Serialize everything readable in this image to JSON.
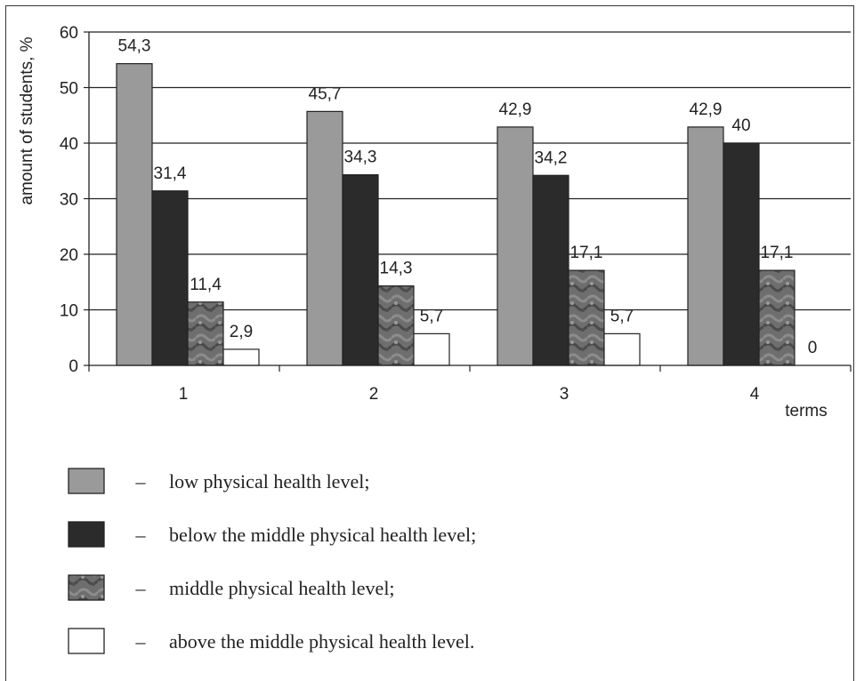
{
  "chart_data": {
    "type": "bar",
    "ylabel": "amount of students, %",
    "xlabel": "terms",
    "ylim": [
      0,
      60
    ],
    "yticks": [
      0,
      10,
      20,
      30,
      40,
      50,
      60
    ],
    "grid": true,
    "categories": [
      "1",
      "2",
      "3",
      "4"
    ],
    "value_labels": [
      [
        "54,3",
        "45,7",
        "42,9",
        "42,9"
      ],
      [
        "31,4",
        "34,3",
        "34,2",
        "40"
      ],
      [
        "11,4",
        "14,3",
        "17,1",
        "17,1"
      ],
      [
        "2,9",
        "5,7",
        "5,7",
        "0"
      ]
    ],
    "series": [
      {
        "name": "low physical health level;",
        "values": [
          54.3,
          45.7,
          42.9,
          42.9
        ],
        "color": "#9a9a9a"
      },
      {
        "name": "below the middle physical health level;",
        "values": [
          31.4,
          34.3,
          34.2,
          40
        ],
        "color": "#2b2b2b"
      },
      {
        "name": "middle physical health level;",
        "values": [
          11.4,
          14.3,
          17.1,
          17.1
        ],
        "color": "#6e6e6e"
      },
      {
        "name": "above the middle physical health level.",
        "values": [
          2.9,
          5.7,
          5.7,
          0
        ],
        "color": "#ffffff"
      }
    ],
    "legend_dash": "–",
    "legend_position": "bottom"
  }
}
